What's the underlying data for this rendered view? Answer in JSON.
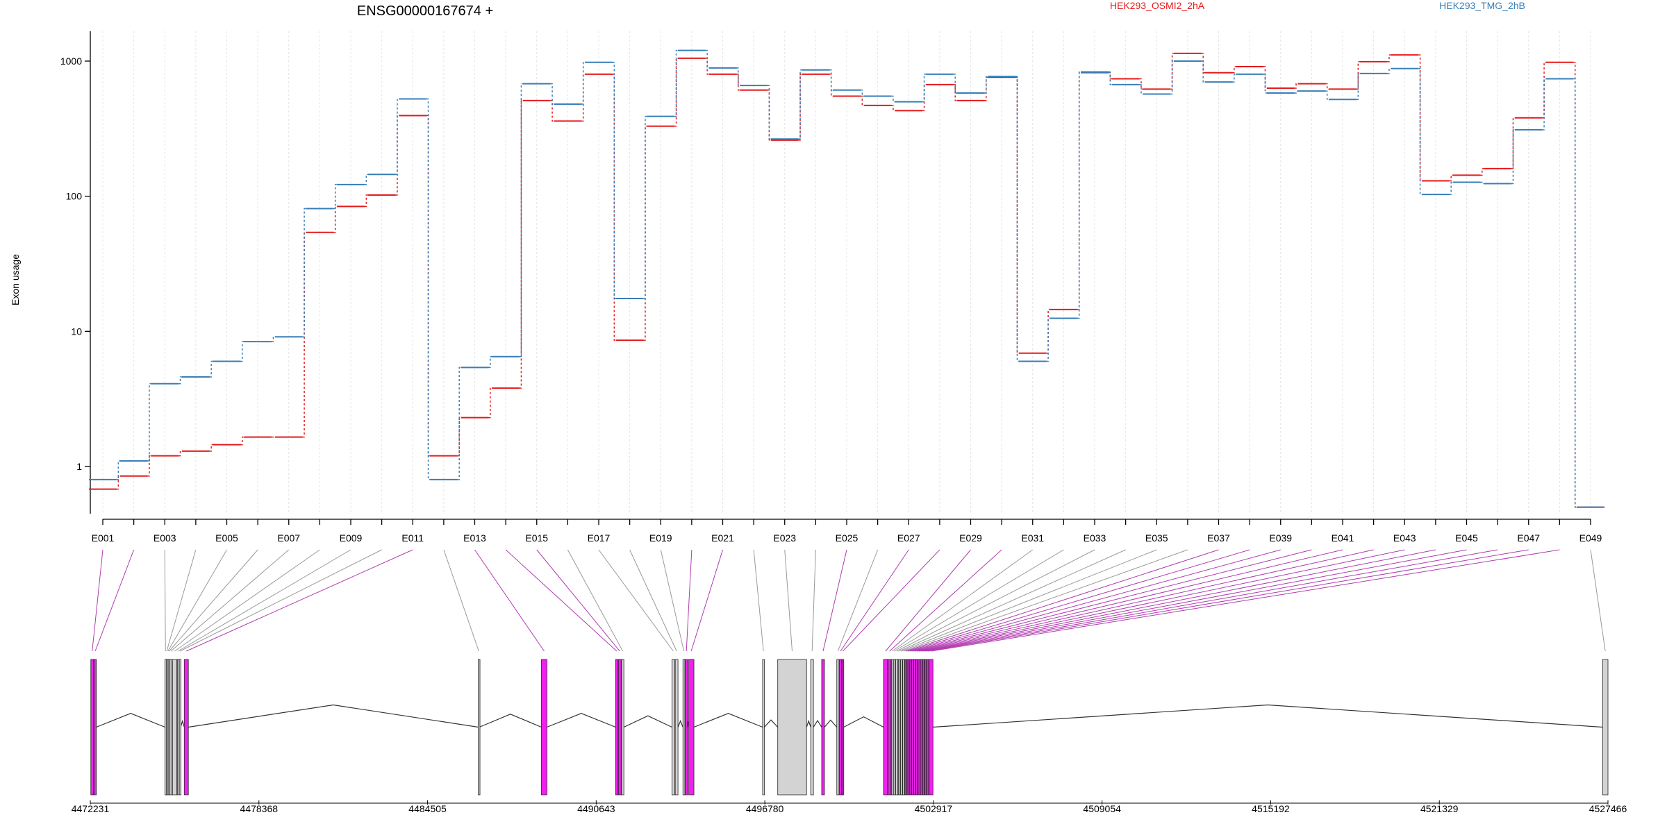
{
  "chart_data": [
    {
      "type": "line",
      "title": "ENSG00000167674 +",
      "ylabel": "Exon usage",
      "xlabel": "",
      "yscale": "log",
      "ylim": [
        0.5,
        1700
      ],
      "yticks": [
        1,
        10,
        100,
        1000
      ],
      "ytick_labels": [
        "1",
        "10",
        "100",
        "1000"
      ],
      "grid": "vertical dotted lines at each exon",
      "legend": [
        "HEK293_OSMI2_2hA",
        "HEK293_TMG_2hB"
      ],
      "legend_placement": "top",
      "categories": [
        "E001",
        "E002",
        "E003",
        "E004",
        "E005",
        "E006",
        "E007",
        "E008",
        "E009",
        "E010",
        "E011",
        "E012",
        "E013",
        "E014",
        "E015",
        "E016",
        "E017",
        "E018",
        "E019",
        "E020",
        "E021",
        "E022",
        "E023",
        "E024",
        "E025",
        "E026",
        "E027",
        "E028",
        "E029",
        "E030",
        "E031",
        "E032",
        "E033",
        "E034",
        "E035",
        "E036",
        "E037",
        "E038",
        "E039",
        "E040",
        "E041",
        "E042",
        "E043",
        "E044",
        "E045",
        "E046",
        "E047",
        "E048",
        "E049"
      ],
      "tick_labels": [
        "E001",
        "E003",
        "E005",
        "E007",
        "E009",
        "E011",
        "E013",
        "E015",
        "E017",
        "E019",
        "E021",
        "E023",
        "E025",
        "E027",
        "E029",
        "E031",
        "E033",
        "E035",
        "E037",
        "E039",
        "E041",
        "E043",
        "E045",
        "E047",
        "E049"
      ],
      "series": [
        {
          "name": "HEK293_OSMI2_2hA",
          "color": "#e41a1c",
          "values": [
            0.68,
            0.85,
            1.2,
            1.3,
            1.45,
            1.65,
            1.65,
            54,
            84,
            102,
            395,
            1.2,
            2.3,
            3.8,
            510,
            360,
            800,
            8.6,
            330,
            1050,
            800,
            610,
            260,
            800,
            550,
            470,
            430,
            670,
            510,
            760,
            6.9,
            14.5,
            830,
            740,
            620,
            1140,
            820,
            910,
            630,
            680,
            620,
            990,
            1110,
            130,
            143,
            160,
            380,
            980,
            0.5
          ]
        },
        {
          "name": "HEK293_TMG_2hB",
          "color": "#377eb8",
          "values": [
            0.8,
            1.1,
            4.1,
            4.6,
            6.0,
            8.4,
            9.1,
            81,
            122,
            145,
            525,
            0.8,
            5.4,
            6.5,
            680,
            480,
            980,
            17.5,
            390,
            1200,
            890,
            660,
            265,
            860,
            610,
            550,
            500,
            800,
            580,
            770,
            6.0,
            12.5,
            820,
            670,
            570,
            1000,
            700,
            800,
            580,
            600,
            520,
            810,
            880,
            103,
            127,
            124,
            310,
            740,
            0.5
          ]
        }
      ]
    },
    {
      "type": "diagram",
      "description_ticks": [
        "4472231",
        "4478368",
        "4484505",
        "4490643",
        "4496780",
        "4502917",
        "4509054",
        "4515192",
        "4521329",
        "4527466"
      ],
      "xlim": [
        4472231,
        4527466
      ],
      "tracks": {
        "exon_fill_normal": "#d3d3d3",
        "exon_fill_highlight": "#ee22ee",
        "connector_normal": "#999999",
        "connector_highlight": "#b03ab0",
        "intron_line": "#333333"
      },
      "exons": [
        {
          "id": "E001",
          "start": 4472250,
          "end": 4472350,
          "hl": true
        },
        {
          "id": "E002",
          "start": 4472370,
          "end": 4472450,
          "hl": true
        },
        {
          "id": "E003",
          "start": 4474950,
          "end": 4474985,
          "hl": false
        },
        {
          "id": "E004",
          "start": 4474995,
          "end": 4475030,
          "hl": false
        },
        {
          "id": "E005",
          "start": 4475040,
          "end": 4475075,
          "hl": false
        },
        {
          "id": "E006",
          "start": 4475085,
          "end": 4475120,
          "hl": false
        },
        {
          "id": "E007",
          "start": 4475130,
          "end": 4475200,
          "hl": false
        },
        {
          "id": "E008",
          "start": 4475220,
          "end": 4475380,
          "hl": false
        },
        {
          "id": "E009",
          "start": 4475400,
          "end": 4475450,
          "hl": false
        },
        {
          "id": "E010",
          "start": 4475470,
          "end": 4475520,
          "hl": false
        },
        {
          "id": "E011",
          "start": 4475650,
          "end": 4475800,
          "hl": true
        },
        {
          "id": "E012",
          "start": 4486350,
          "end": 4486390,
          "hl": false
        },
        {
          "id": "E013",
          "start": 4488650,
          "end": 4488850,
          "hl": true
        },
        {
          "id": "E014",
          "start": 4491350,
          "end": 4491430,
          "hl": true
        },
        {
          "id": "E015",
          "start": 4491450,
          "end": 4491550,
          "hl": true
        },
        {
          "id": "E016",
          "start": 4491570,
          "end": 4491650,
          "hl": false
        },
        {
          "id": "E017",
          "start": 4493400,
          "end": 4493500,
          "hl": false
        },
        {
          "id": "E018",
          "start": 4493520,
          "end": 4493620,
          "hl": false
        },
        {
          "id": "E019",
          "start": 4493800,
          "end": 4493870,
          "hl": false
        },
        {
          "id": "E020",
          "start": 4493890,
          "end": 4493960,
          "hl": true
        },
        {
          "id": "E021",
          "start": 4494000,
          "end": 4494200,
          "hl": true
        },
        {
          "id": "E022",
          "start": 4496700,
          "end": 4496760,
          "hl": false
        },
        {
          "id": "E023",
          "start": 4497250,
          "end": 4498300,
          "hl": false
        },
        {
          "id": "E024",
          "start": 4498450,
          "end": 4498550,
          "hl": false
        },
        {
          "id": "E025",
          "start": 4498850,
          "end": 4498950,
          "hl": true
        },
        {
          "id": "E026",
          "start": 4499400,
          "end": 4499480,
          "hl": false
        },
        {
          "id": "E027",
          "start": 4499500,
          "end": 4499570,
          "hl": true
        },
        {
          "id": "E028",
          "start": 4499590,
          "end": 4499650,
          "hl": true
        },
        {
          "id": "E029",
          "start": 4501100,
          "end": 4501250,
          "hl": true
        },
        {
          "id": "E030",
          "start": 4501270,
          "end": 4501370,
          "hl": true
        },
        {
          "id": "E031",
          "start": 4501390,
          "end": 4501440,
          "hl": false
        },
        {
          "id": "E032",
          "start": 4501460,
          "end": 4501520,
          "hl": false
        },
        {
          "id": "E033",
          "start": 4501540,
          "end": 4501620,
          "hl": false
        },
        {
          "id": "E034",
          "start": 4501640,
          "end": 4501700,
          "hl": false
        },
        {
          "id": "E035",
          "start": 4501720,
          "end": 4501780,
          "hl": false
        },
        {
          "id": "E036",
          "start": 4501800,
          "end": 4501860,
          "hl": false
        },
        {
          "id": "E037",
          "start": 4501880,
          "end": 4501940,
          "hl": true
        },
        {
          "id": "E038",
          "start": 4501960,
          "end": 4502020,
          "hl": true
        },
        {
          "id": "E039",
          "start": 4502040,
          "end": 4502100,
          "hl": true
        },
        {
          "id": "E040",
          "start": 4502120,
          "end": 4502180,
          "hl": true
        },
        {
          "id": "E041",
          "start": 4502200,
          "end": 4502260,
          "hl": true
        },
        {
          "id": "E042",
          "start": 4502280,
          "end": 4502340,
          "hl": true
        },
        {
          "id": "E043",
          "start": 4502360,
          "end": 4502420,
          "hl": true
        },
        {
          "id": "E044",
          "start": 4502440,
          "end": 4502500,
          "hl": true
        },
        {
          "id": "E045",
          "start": 4502520,
          "end": 4502580,
          "hl": true
        },
        {
          "id": "E046",
          "start": 4502600,
          "end": 4502660,
          "hl": true
        },
        {
          "id": "E047",
          "start": 4502680,
          "end": 4502740,
          "hl": true
        },
        {
          "id": "E048",
          "start": 4502760,
          "end": 4502900,
          "hl": true
        },
        {
          "id": "E049",
          "start": 4527270,
          "end": 4527466,
          "hl": false
        }
      ]
    }
  ]
}
